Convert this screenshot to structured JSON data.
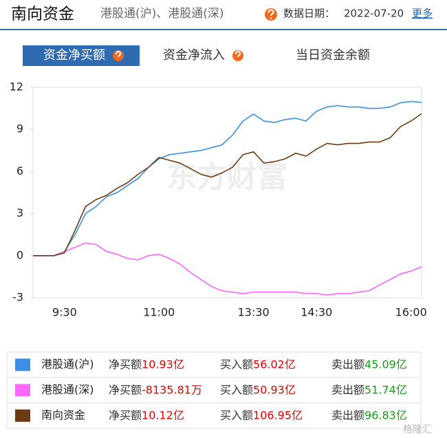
{
  "header": {
    "title": "南向资金",
    "subtitle": "港股通(沪)、港股通(深)",
    "date_label": "数据日期：",
    "date": "2022-07-20",
    "more": "更多"
  },
  "tabs": [
    "资金净买额",
    "资金净流入",
    "当日资金余额"
  ],
  "chart_data": {
    "type": "line",
    "watermark": "东方财富",
    "categories": [
      null,
      null,
      null,
      "9:30",
      null,
      null,
      null,
      null,
      null,
      null,
      null,
      null,
      "11:00",
      null,
      null,
      null,
      null,
      null,
      null,
      null,
      null,
      "13:30",
      null,
      null,
      null,
      null,
      null,
      "14:30",
      null,
      null,
      null,
      null,
      null,
      null,
      null,
      null,
      "16:00",
      null
    ],
    "series": [
      {
        "name": "港股通(沪)",
        "color": "#3a8ee6",
        "values": [
          0,
          0,
          0,
          0.3,
          1.5,
          3,
          3.5,
          4.2,
          4.5,
          5,
          5.5,
          6.3,
          6.9,
          7.2,
          7.3,
          7.4,
          7.5,
          7.7,
          7.9,
          8.6,
          9.6,
          10.1,
          9.6,
          9.5,
          9.7,
          9.8,
          9.6,
          10.3,
          10.6,
          10.7,
          10.6,
          10.6,
          10.5,
          10.5,
          10.6,
          10.9,
          11.0,
          10.93
        ]
      },
      {
        "name": "港股通(深)",
        "color": "#ff66ff",
        "values": [
          0,
          0,
          0,
          0.3,
          0.6,
          0.9,
          0.8,
          0.3,
          0.1,
          -0.2,
          -0.3,
          0,
          0.1,
          -0.2,
          -0.6,
          -1.2,
          -1.7,
          -2.2,
          -2.5,
          -2.6,
          -2.7,
          -2.6,
          -2.6,
          -2.6,
          -2.6,
          -2.6,
          -2.7,
          -2.7,
          -2.8,
          -2.7,
          -2.7,
          -2.6,
          -2.5,
          -2.1,
          -1.7,
          -1.3,
          -1.1,
          -0.8
        ]
      },
      {
        "name": "南向资金",
        "color": "#6b3a10",
        "values": [
          0,
          0,
          0,
          0.2,
          1.8,
          3.5,
          4,
          4.3,
          4.8,
          5.2,
          5.8,
          6.3,
          7.0,
          6.8,
          6.6,
          6.2,
          5.8,
          5.6,
          5.9,
          6.3,
          7.2,
          7.4,
          6.6,
          6.7,
          6.9,
          7.3,
          7.1,
          7.6,
          8.0,
          7.9,
          8.0,
          8.0,
          8.1,
          8.1,
          8.4,
          9.2,
          9.6,
          10.12
        ]
      }
    ],
    "ylim": [
      -3,
      12
    ],
    "yticks": [
      -3,
      0,
      3,
      6,
      9,
      12
    ],
    "grid": false
  },
  "legend_table": {
    "rows": [
      [
        [
          "净买额",
          "10.93亿"
        ],
        [
          "买入额",
          "56.02亿"
        ],
        [
          "卖出额",
          "45.09亿"
        ]
      ],
      [
        [
          "净买额",
          "-8135.81万"
        ],
        [
          "买入额",
          "50.93亿"
        ],
        [
          "卖出额",
          "51.74亿"
        ]
      ],
      [
        [
          "净买额",
          "10.12亿"
        ],
        [
          "买入额",
          "106.95亿"
        ],
        [
          "卖出额",
          "96.83亿"
        ]
      ]
    ]
  },
  "footer_watermark": "格隆汇"
}
